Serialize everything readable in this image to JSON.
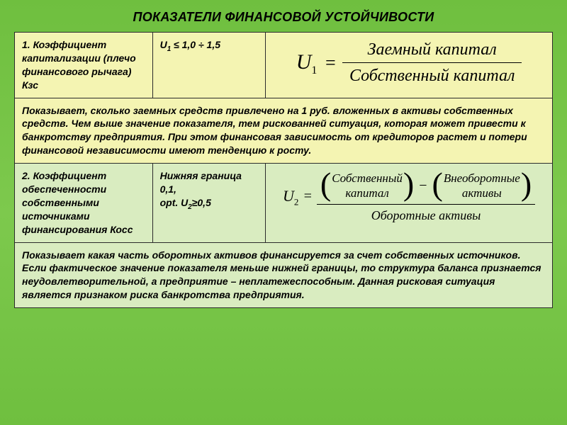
{
  "slide": {
    "title": "ПОКАЗАТЕЛИ ФИНАНСОВОЙ УСТОЙЧИВОСТИ",
    "colors": {
      "background_gradient_top": "#6fbf3f",
      "background_gradient_mid": "#7dc94d",
      "row1_bg": "#f4f4b2",
      "row2_bg": "#d9ecc0",
      "border": "#2b2b2b",
      "text": "#000000",
      "formula_font": "Times New Roman"
    },
    "row1": {
      "name": "1. Коэффициент капитализации (плечо финансового рычага) Кзс",
      "norm": "U₁ ≤ 1,0 ÷ 1,5",
      "norm_plain_prefix": "U",
      "norm_sub": "1",
      "norm_rest": " ≤ 1,0 ÷ 1,5",
      "formula": {
        "lhs": "U",
        "lhs_sub": "1",
        "numerator": "Заемный капитал",
        "denominator": "Собственный капитал"
      },
      "desc": "Показывает, сколько заемных средств привлечено на 1 руб. вложенных в активы собственных средств. Чем выше значение показателя, тем рискованней ситуация, которая может привести к банкротству предприятия. При этом финансовая зависимость от кредиторов растет и потери финансовой независимости имеют тенденцию к росту."
    },
    "row2": {
      "name": "2. Коэффициент обеспеченности собственными источниками финансирования Косс",
      "norm_line1": "Нижняя граница 0,1,",
      "norm_line2_prefix": "opt. U",
      "norm_line2_sub": "2",
      "norm_line2_rest": "≥0,5",
      "formula": {
        "lhs": "U",
        "lhs_sub": "2",
        "n_left_top": "Собственный",
        "n_left_bot": "капитал",
        "n_right_top": "Внеоборотные",
        "n_right_bot": "активы",
        "denominator": "Оборотные активы"
      },
      "desc": "Показывает какая часть оборотных активов финансируется за счет собственных источников. Если фактическое значение показателя меньше нижней границы, то структура баланса признается неудовлетворительной, а предприятие – неплатежеспособным. Данная рисковая ситуация является признаком риска банкротства предприятия."
    }
  }
}
